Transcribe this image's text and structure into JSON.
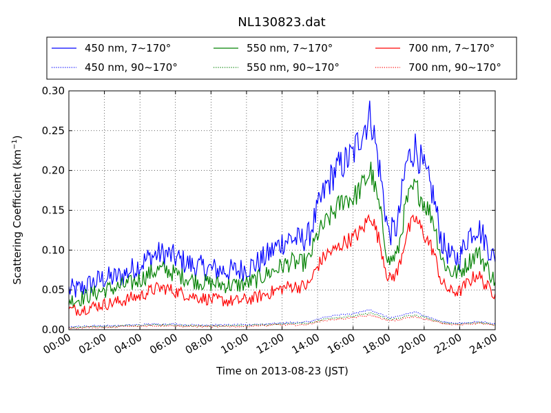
{
  "chart_data": {
    "type": "line",
    "title": "NL130823.dat",
    "xlabel": "Time on 2013-08-23 (JST)",
    "ylabel_main": "Scattering Coefficient (km",
    "ylabel_sup": "−1",
    "ylabel_tail": ")",
    "xlim_hours": [
      0,
      24
    ],
    "ylim": [
      0,
      0.3
    ],
    "grid": true,
    "legend_placement": "top-center",
    "x_ticks": [
      "00:00",
      "02:00",
      "04:00",
      "06:00",
      "08:00",
      "10:00",
      "12:00",
      "14:00",
      "16:00",
      "18:00",
      "20:00",
      "22:00",
      "24:00"
    ],
    "y_ticks": [
      "0.00",
      "0.05",
      "0.10",
      "0.15",
      "0.20",
      "0.25",
      "0.30"
    ],
    "y_tick_values": [
      0,
      0.05,
      0.1,
      0.15,
      0.2,
      0.25,
      0.3
    ],
    "x_hours": [
      0,
      0.5,
      1,
      1.5,
      2,
      2.5,
      3,
      3.5,
      4,
      4.5,
      5,
      5.5,
      6,
      6.5,
      7,
      7.5,
      8,
      8.5,
      9,
      9.5,
      10,
      10.5,
      11,
      11.5,
      12,
      12.5,
      13,
      13.5,
      14,
      14.5,
      15,
      15.5,
      16,
      16.5,
      17,
      17.5,
      18,
      18.5,
      19,
      19.5,
      20,
      20.5,
      21,
      21.5,
      22,
      22.5,
      23,
      23.5,
      24
    ],
    "series": [
      {
        "name": "450 nm, 7∼170°",
        "color": "#0000ff",
        "style": "solid",
        "noise": 0.012,
        "values": [
          0.05,
          0.05,
          0.055,
          0.06,
          0.065,
          0.065,
          0.068,
          0.075,
          0.082,
          0.09,
          0.095,
          0.095,
          0.09,
          0.085,
          0.08,
          0.078,
          0.076,
          0.075,
          0.074,
          0.074,
          0.078,
          0.082,
          0.09,
          0.1,
          0.11,
          0.115,
          0.112,
          0.118,
          0.15,
          0.18,
          0.2,
          0.21,
          0.22,
          0.25,
          0.27,
          0.2,
          0.12,
          0.13,
          0.21,
          0.23,
          0.2,
          0.17,
          0.11,
          0.09,
          0.09,
          0.12,
          0.13,
          0.11,
          0.085
        ]
      },
      {
        "name": "550 nm, 7∼170°",
        "color": "#008000",
        "style": "solid",
        "noise": 0.009,
        "values": [
          0.037,
          0.038,
          0.042,
          0.046,
          0.05,
          0.052,
          0.055,
          0.058,
          0.063,
          0.07,
          0.075,
          0.075,
          0.07,
          0.066,
          0.062,
          0.06,
          0.058,
          0.057,
          0.056,
          0.056,
          0.058,
          0.062,
          0.068,
          0.074,
          0.08,
          0.085,
          0.083,
          0.087,
          0.12,
          0.135,
          0.15,
          0.165,
          0.165,
          0.18,
          0.2,
          0.15,
          0.085,
          0.095,
          0.16,
          0.18,
          0.16,
          0.14,
          0.088,
          0.072,
          0.072,
          0.085,
          0.098,
          0.08,
          0.06
        ]
      },
      {
        "name": "700 nm, 7∼170°",
        "color": "#ff0000",
        "style": "solid",
        "noise": 0.007,
        "values": [
          0.025,
          0.025,
          0.027,
          0.03,
          0.032,
          0.034,
          0.036,
          0.04,
          0.042,
          0.048,
          0.052,
          0.052,
          0.048,
          0.045,
          0.042,
          0.04,
          0.038,
          0.037,
          0.036,
          0.036,
          0.038,
          0.04,
          0.044,
          0.048,
          0.052,
          0.055,
          0.054,
          0.056,
          0.08,
          0.095,
          0.1,
          0.11,
          0.115,
          0.125,
          0.145,
          0.11,
          0.062,
          0.072,
          0.12,
          0.14,
          0.12,
          0.1,
          0.058,
          0.048,
          0.048,
          0.06,
          0.07,
          0.055,
          0.045
        ]
      },
      {
        "name": "450 nm, 90∼170°",
        "color": "#0000ff",
        "style": "dotted",
        "noise": 0.001,
        "values": [
          0.004,
          0.004,
          0.004,
          0.005,
          0.005,
          0.005,
          0.005,
          0.006,
          0.006,
          0.007,
          0.007,
          0.007,
          0.007,
          0.006,
          0.006,
          0.006,
          0.006,
          0.006,
          0.006,
          0.006,
          0.006,
          0.007,
          0.007,
          0.008,
          0.008,
          0.009,
          0.009,
          0.01,
          0.013,
          0.016,
          0.018,
          0.019,
          0.02,
          0.023,
          0.025,
          0.02,
          0.015,
          0.016,
          0.02,
          0.022,
          0.018,
          0.014,
          0.01,
          0.009,
          0.008,
          0.009,
          0.01,
          0.009,
          0.007
        ]
      },
      {
        "name": "550 nm, 90∼170°",
        "color": "#008000",
        "style": "dotted",
        "noise": 0.001,
        "values": [
          0.003,
          0.003,
          0.004,
          0.004,
          0.004,
          0.004,
          0.005,
          0.005,
          0.005,
          0.006,
          0.006,
          0.006,
          0.006,
          0.005,
          0.005,
          0.005,
          0.005,
          0.005,
          0.005,
          0.005,
          0.005,
          0.006,
          0.006,
          0.007,
          0.007,
          0.008,
          0.008,
          0.008,
          0.011,
          0.014,
          0.015,
          0.016,
          0.017,
          0.019,
          0.021,
          0.017,
          0.013,
          0.014,
          0.017,
          0.018,
          0.016,
          0.012,
          0.009,
          0.008,
          0.007,
          0.008,
          0.009,
          0.008,
          0.006
        ]
      },
      {
        "name": "700 nm, 90∼170°",
        "color": "#ff0000",
        "style": "dotted",
        "noise": 0.001,
        "values": [
          0.002,
          0.002,
          0.003,
          0.003,
          0.003,
          0.003,
          0.004,
          0.004,
          0.004,
          0.005,
          0.005,
          0.005,
          0.005,
          0.004,
          0.004,
          0.004,
          0.004,
          0.004,
          0.004,
          0.004,
          0.004,
          0.005,
          0.005,
          0.006,
          0.006,
          0.006,
          0.006,
          0.007,
          0.01,
          0.012,
          0.013,
          0.014,
          0.015,
          0.017,
          0.018,
          0.015,
          0.011,
          0.012,
          0.015,
          0.016,
          0.014,
          0.011,
          0.008,
          0.007,
          0.006,
          0.007,
          0.008,
          0.007,
          0.005
        ]
      }
    ]
  }
}
